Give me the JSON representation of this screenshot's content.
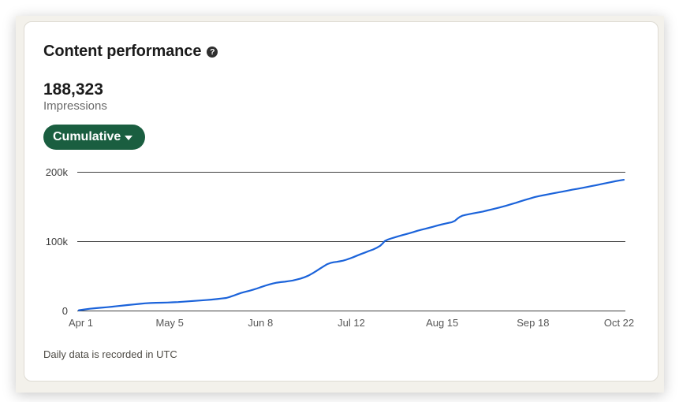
{
  "card": {
    "title": "Content performance",
    "help_icon": "?"
  },
  "stats": {
    "value": "188,323",
    "label": "Impressions"
  },
  "controls": {
    "dropdown_label": "Cumulative"
  },
  "footnote": "Daily data is recorded in UTC",
  "colors": {
    "page_background": "#f3f1eb",
    "card_background": "#ffffff",
    "accent_green": "#1a5e40",
    "line_blue": "#1b63da",
    "gridline": "#3f3f3f"
  },
  "chart_data": {
    "type": "line",
    "title": "Content performance",
    "series_name": "Impressions",
    "x_axis": {
      "label": "",
      "tick_labels": [
        "Apr 1",
        "May 5",
        "Jun 8",
        "Jul 12",
        "Aug 15",
        "Sep 18",
        "Oct 22"
      ],
      "tick_interval_days": 34,
      "total_days": 204
    },
    "y_axis": {
      "label": "",
      "min": 0,
      "max": 200000,
      "tick_labels": [
        "0",
        "100k",
        "200k"
      ],
      "tick_values": [
        0,
        100000,
        200000
      ]
    },
    "grid": true,
    "legend": false,
    "final_value": 188323,
    "points_day_value_thousands": [
      [
        0.0,
        0.5
      ],
      [
        2.1,
        1.6
      ],
      [
        4.1,
        2.6
      ],
      [
        6.2,
        3.4
      ],
      [
        8.3,
        4.1
      ],
      [
        10.3,
        4.8
      ],
      [
        12.4,
        5.6
      ],
      [
        14.5,
        6.5
      ],
      [
        16.5,
        7.3
      ],
      [
        18.6,
        8.1
      ],
      [
        20.7,
        8.9
      ],
      [
        22.7,
        9.7
      ],
      [
        24.8,
        10.4
      ],
      [
        26.9,
        10.9
      ],
      [
        28.9,
        11.2
      ],
      [
        31.0,
        11.4
      ],
      [
        33.1,
        11.6
      ],
      [
        35.1,
        11.9
      ],
      [
        37.2,
        12.3
      ],
      [
        39.3,
        12.8
      ],
      [
        41.3,
        13.4
      ],
      [
        43.4,
        14.0
      ],
      [
        45.5,
        14.5
      ],
      [
        47.5,
        15.1
      ],
      [
        49.6,
        15.8
      ],
      [
        51.7,
        16.6
      ],
      [
        53.4,
        17.4
      ],
      [
        55.2,
        18.2
      ],
      [
        56.4,
        19.5
      ],
      [
        57.9,
        21.5
      ],
      [
        59.3,
        23.5
      ],
      [
        60.8,
        25.4
      ],
      [
        62.3,
        27.0
      ],
      [
        63.8,
        28.5
      ],
      [
        65.2,
        30.0
      ],
      [
        66.7,
        31.8
      ],
      [
        68.2,
        33.8
      ],
      [
        69.7,
        35.8
      ],
      [
        71.1,
        37.4
      ],
      [
        72.6,
        38.9
      ],
      [
        74.1,
        40.2
      ],
      [
        75.6,
        41.0
      ],
      [
        77.1,
        41.6
      ],
      [
        78.5,
        42.3
      ],
      [
        80.0,
        43.3
      ],
      [
        81.5,
        44.6
      ],
      [
        83.0,
        46.1
      ],
      [
        84.4,
        47.9
      ],
      [
        85.9,
        50.3
      ],
      [
        87.4,
        53.5
      ],
      [
        88.9,
        57.0
      ],
      [
        90.3,
        60.5
      ],
      [
        91.8,
        64.0
      ],
      [
        93.0,
        66.8
      ],
      [
        94.2,
        68.6
      ],
      [
        95.4,
        69.6
      ],
      [
        96.5,
        70.2
      ],
      [
        97.7,
        70.9
      ],
      [
        98.9,
        71.9
      ],
      [
        100.1,
        73.2
      ],
      [
        101.3,
        74.8
      ],
      [
        102.7,
        76.9
      ],
      [
        104.2,
        79.2
      ],
      [
        105.7,
        81.5
      ],
      [
        107.2,
        83.7
      ],
      [
        108.6,
        85.8
      ],
      [
        110.1,
        87.9
      ],
      [
        111.6,
        90.6
      ],
      [
        112.8,
        93.3
      ],
      [
        113.7,
        96.5
      ],
      [
        114.5,
        100.0
      ],
      [
        115.7,
        102.3
      ],
      [
        116.9,
        103.9
      ],
      [
        118.1,
        105.2
      ],
      [
        119.3,
        106.6
      ],
      [
        120.7,
        108.2
      ],
      [
        122.2,
        109.8
      ],
      [
        123.7,
        111.4
      ],
      [
        125.2,
        113.0
      ],
      [
        126.6,
        114.7
      ],
      [
        128.1,
        116.2
      ],
      [
        129.6,
        117.7
      ],
      [
        131.1,
        119.2
      ],
      [
        132.6,
        120.7
      ],
      [
        134.0,
        122.2
      ],
      [
        135.5,
        123.7
      ],
      [
        137.0,
        125.1
      ],
      [
        138.5,
        126.3
      ],
      [
        139.6,
        127.2
      ],
      [
        140.8,
        129.3
      ],
      [
        141.7,
        132.3
      ],
      [
        142.6,
        134.9
      ],
      [
        143.5,
        136.5
      ],
      [
        144.7,
        137.7
      ],
      [
        146.1,
        138.8
      ],
      [
        147.6,
        139.9
      ],
      [
        149.4,
        141.2
      ],
      [
        151.2,
        142.6
      ],
      [
        152.9,
        144.1
      ],
      [
        154.7,
        145.7
      ],
      [
        156.5,
        147.4
      ],
      [
        158.2,
        149.2
      ],
      [
        160.0,
        151.1
      ],
      [
        161.8,
        153.1
      ],
      [
        163.6,
        155.2
      ],
      [
        165.3,
        157.3
      ],
      [
        167.1,
        159.4
      ],
      [
        168.9,
        161.4
      ],
      [
        170.6,
        163.3
      ],
      [
        172.4,
        164.9
      ],
      [
        174.2,
        166.3
      ],
      [
        176.0,
        167.6
      ],
      [
        177.7,
        168.9
      ],
      [
        179.5,
        170.2
      ],
      [
        181.3,
        171.5
      ],
      [
        183.0,
        172.8
      ],
      [
        184.8,
        174.1
      ],
      [
        186.6,
        175.3
      ],
      [
        188.4,
        176.6
      ],
      [
        190.1,
        177.9
      ],
      [
        191.9,
        179.2
      ],
      [
        193.7,
        180.6
      ],
      [
        195.4,
        182.0
      ],
      [
        197.2,
        183.4
      ],
      [
        199.0,
        184.8
      ],
      [
        200.7,
        186.1
      ],
      [
        202.2,
        187.2
      ],
      [
        204.0,
        188.3
      ]
    ]
  }
}
